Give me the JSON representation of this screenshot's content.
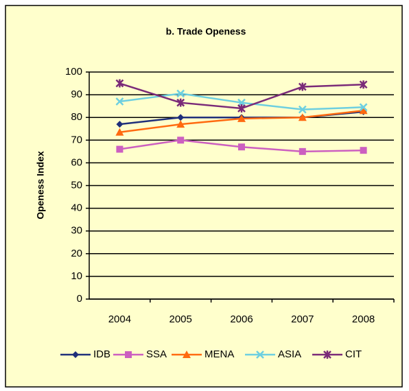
{
  "chart_data": {
    "type": "line",
    "title": "b. Trade Openess",
    "y_label": "Openess Index",
    "categories": [
      "2004",
      "2005",
      "2006",
      "2007",
      "2008"
    ],
    "series": [
      {
        "name": "IDB",
        "color": "#1f2f7a",
        "marker": "diamond",
        "values": [
          77,
          80,
          80,
          80,
          82.5
        ]
      },
      {
        "name": "SSA",
        "color": "#cc5fc0",
        "marker": "square",
        "values": [
          66,
          70,
          67,
          65,
          65.5
        ]
      },
      {
        "name": "MENA",
        "color": "#ff6a10",
        "marker": "triangle",
        "values": [
          73.5,
          77,
          79.5,
          80,
          83
        ]
      },
      {
        "name": "ASIA",
        "color": "#6dcfe0",
        "marker": "x",
        "values": [
          87,
          90.5,
          86.5,
          83.5,
          84.5
        ]
      },
      {
        "name": "CIT",
        "color": "#7a2a78",
        "marker": "star",
        "values": [
          95,
          86.5,
          84,
          93.5,
          94.5
        ]
      }
    ],
    "ylim": [
      0,
      100
    ],
    "yticks": [
      0,
      10,
      20,
      30,
      40,
      50,
      60,
      70,
      80,
      90,
      100
    ],
    "grid": true,
    "legend": "bottom"
  }
}
